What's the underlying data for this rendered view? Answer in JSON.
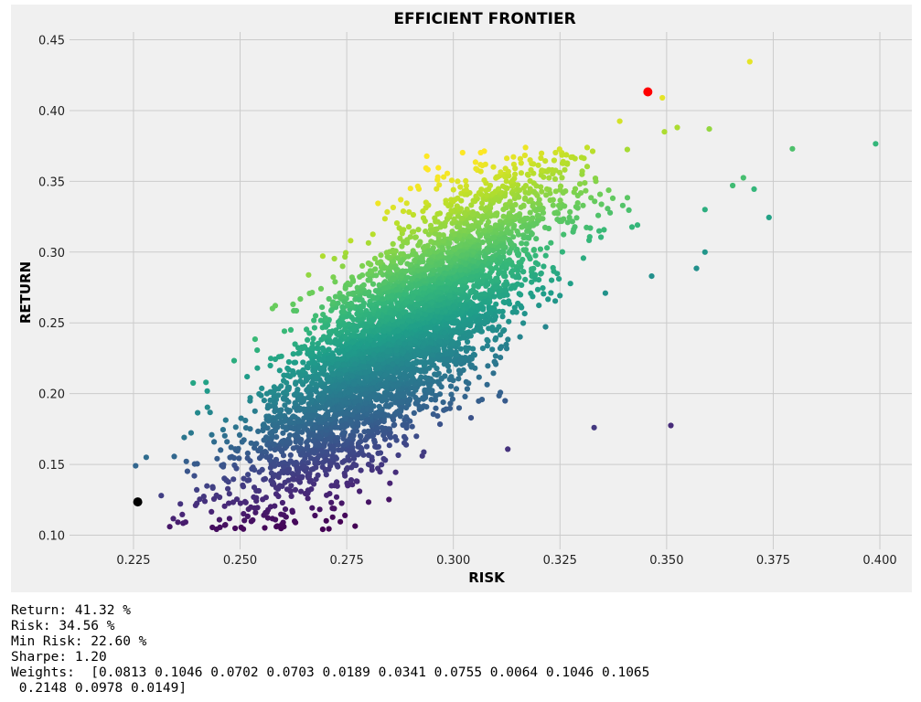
{
  "chart_data": {
    "type": "scatter",
    "title": "EFFICIENT FRONTIER",
    "xlabel": "RISK",
    "ylabel": "RETURN",
    "xlim": [
      0.21,
      0.4075
    ],
    "ylim": [
      0.09,
      0.4555
    ],
    "xticks": [
      "0.225",
      "0.250",
      "0.275",
      "0.300",
      "0.325",
      "0.350",
      "0.375",
      "0.400"
    ],
    "yticks": [
      "0.10",
      "0.15",
      "0.20",
      "0.25",
      "0.30",
      "0.35",
      "0.40",
      "0.45"
    ],
    "grid": true,
    "colormap": "viridis",
    "color_by": "sharpe",
    "num_portfolios": 5000,
    "cloud": {
      "risk_center": 0.2875,
      "return_center": 0.24,
      "risk_sd": 0.018,
      "corr_slope": 2.55,
      "return_sd": 0.034
    },
    "outliers": [
      {
        "risk": 0.3695,
        "return": 0.4345,
        "sharpe": 1.17
      },
      {
        "risk": 0.349,
        "return": 0.409,
        "sharpe": 1.17
      },
      {
        "risk": 0.339,
        "return": 0.3925,
        "sharpe": 1.15
      },
      {
        "risk": 0.399,
        "return": 0.3765,
        "sharpe": 0.93
      },
      {
        "risk": 0.3795,
        "return": 0.373,
        "sharpe": 0.97
      },
      {
        "risk": 0.374,
        "return": 0.3245,
        "sharpe": 0.86
      },
      {
        "risk": 0.359,
        "return": 0.33,
        "sharpe": 0.9
      },
      {
        "risk": 0.359,
        "return": 0.3,
        "sharpe": 0.82
      },
      {
        "risk": 0.357,
        "return": 0.2885,
        "sharpe": 0.8
      },
      {
        "risk": 0.3465,
        "return": 0.283,
        "sharpe": 0.8
      },
      {
        "risk": 0.351,
        "return": 0.1775,
        "sharpe": 0.5
      },
      {
        "risk": 0.368,
        "return": 0.3525,
        "sharpe": 0.96
      },
      {
        "risk": 0.3705,
        "return": 0.3445,
        "sharpe": 0.93
      },
      {
        "risk": 0.36,
        "return": 0.387,
        "sharpe": 1.07
      },
      {
        "risk": 0.3525,
        "return": 0.388,
        "sharpe": 1.1
      },
      {
        "risk": 0.3655,
        "return": 0.347,
        "sharpe": 0.95
      },
      {
        "risk": 0.3495,
        "return": 0.385,
        "sharpe": 1.1
      },
      {
        "risk": 0.2335,
        "return": 0.106,
        "sharpe": 0.45
      },
      {
        "risk": 0.2435,
        "return": 0.1055,
        "sharpe": 0.43
      },
      {
        "risk": 0.2585,
        "return": 0.106,
        "sharpe": 0.41
      },
      {
        "risk": 0.2735,
        "return": 0.1095,
        "sharpe": 0.4
      },
      {
        "risk": 0.2255,
        "return": 0.149,
        "sharpe": 0.66
      },
      {
        "risk": 0.228,
        "return": 0.155,
        "sharpe": 0.68
      },
      {
        "risk": 0.2315,
        "return": 0.128,
        "sharpe": 0.55
      },
      {
        "risk": 0.242,
        "return": 0.208,
        "sharpe": 0.86
      },
      {
        "risk": 0.239,
        "return": 0.2075,
        "sharpe": 0.87
      },
      {
        "risk": 0.318,
        "return": 0.365,
        "sharpe": 1.15
      },
      {
        "risk": 0.301,
        "return": 0.35,
        "sharpe": 1.16
      },
      {
        "risk": 0.333,
        "return": 0.176,
        "sharpe": 0.53
      },
      {
        "risk": 0.278,
        "return": 0.131,
        "sharpe": 0.47
      }
    ],
    "max_sharpe_point": {
      "risk": 0.3456,
      "return": 0.4132,
      "color": "#ff0000"
    },
    "min_risk_point": {
      "risk": 0.226,
      "return": 0.1235,
      "color": "#000000"
    }
  },
  "output": {
    "line1": "Return: 41.32 %",
    "line2": "Risk: 34.56 %",
    "line3": "Min Risk: 22.60 %",
    "line4": "Sharpe: 1.20",
    "line5": "Weights:  [0.0813 0.1046 0.0702 0.0703 0.0189 0.0341 0.0755 0.0064 0.1046 0.1065",
    "line6": " 0.2148 0.0978 0.0149]"
  }
}
